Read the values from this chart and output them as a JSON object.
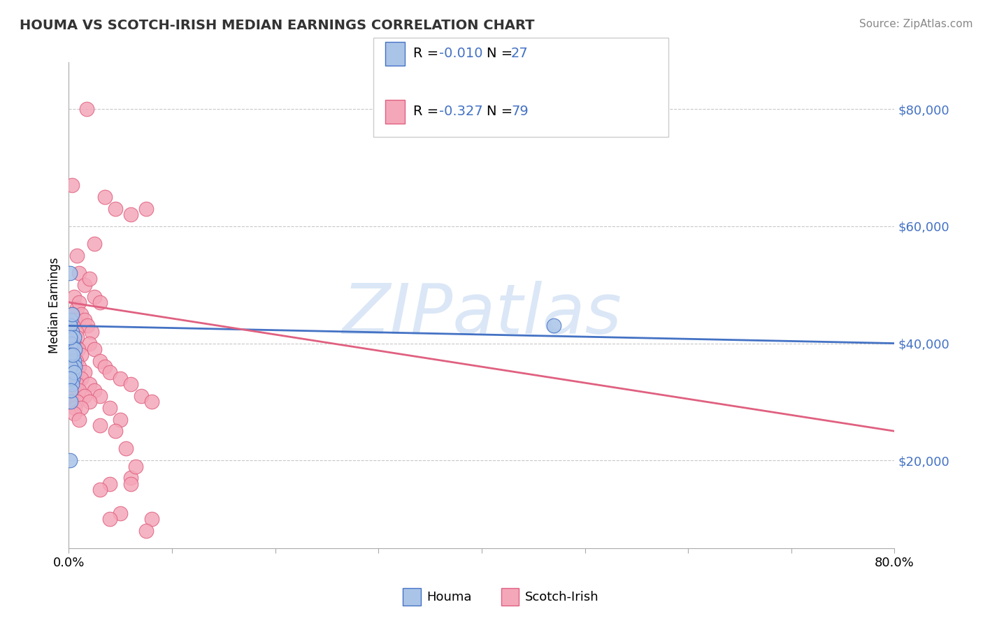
{
  "title": "HOUMA VS SCOTCH-IRISH MEDIAN EARNINGS CORRELATION CHART",
  "source": "Source: ZipAtlas.com",
  "ylabel": "Median Earnings",
  "y_ticks": [
    20000,
    40000,
    60000,
    80000
  ],
  "y_right_labels": [
    "$20,000",
    "$40,000",
    "$60,000",
    "$80,000"
  ],
  "xlim": [
    0.0,
    0.8
  ],
  "ylim": [
    5000,
    88000
  ],
  "x_tick_positions": [
    0.0,
    0.1,
    0.2,
    0.3,
    0.4,
    0.5,
    0.6,
    0.7,
    0.8
  ],
  "x_tick_labels": [
    "0.0%",
    "",
    "",
    "",
    "",
    "",
    "",
    "",
    "80.0%"
  ],
  "houma_color": "#aac4e8",
  "scotch_color": "#f4a7b9",
  "houma_line_color": "#4472c4",
  "scotch_line_color": "#e06080",
  "houma_R": -0.01,
  "houma_N": 27,
  "scotch_R": -0.327,
  "scotch_N": 79,
  "watermark": "ZIPatlas",
  "houma_points": [
    [
      0.002,
      44000
    ],
    [
      0.003,
      42000
    ],
    [
      0.004,
      40000
    ],
    [
      0.002,
      38000
    ],
    [
      0.001,
      43000
    ],
    [
      0.003,
      37000
    ],
    [
      0.005,
      41000
    ],
    [
      0.004,
      36000
    ],
    [
      0.002,
      40000
    ],
    [
      0.006,
      39000
    ],
    [
      0.003,
      35000
    ],
    [
      0.005,
      37000
    ],
    [
      0.001,
      38000
    ],
    [
      0.004,
      34000
    ],
    [
      0.006,
      36000
    ],
    [
      0.002,
      36000
    ],
    [
      0.003,
      33000
    ],
    [
      0.004,
      38000
    ],
    [
      0.005,
      35000
    ],
    [
      0.001,
      41000
    ],
    [
      0.001,
      52000
    ],
    [
      0.002,
      30000
    ],
    [
      0.001,
      20000
    ],
    [
      0.47,
      43000
    ],
    [
      0.001,
      34000
    ],
    [
      0.002,
      32000
    ],
    [
      0.003,
      45000
    ]
  ],
  "scotch_points": [
    [
      0.017,
      80000
    ],
    [
      0.003,
      67000
    ],
    [
      0.035,
      65000
    ],
    [
      0.045,
      63000
    ],
    [
      0.06,
      62000
    ],
    [
      0.075,
      63000
    ],
    [
      0.025,
      57000
    ],
    [
      0.008,
      55000
    ],
    [
      0.01,
      52000
    ],
    [
      0.015,
      50000
    ],
    [
      0.02,
      51000
    ],
    [
      0.025,
      48000
    ],
    [
      0.03,
      47000
    ],
    [
      0.005,
      48000
    ],
    [
      0.008,
      46000
    ],
    [
      0.01,
      47000
    ],
    [
      0.012,
      45000
    ],
    [
      0.003,
      45000
    ],
    [
      0.006,
      44000
    ],
    [
      0.015,
      44000
    ],
    [
      0.018,
      43000
    ],
    [
      0.004,
      43000
    ],
    [
      0.007,
      42000
    ],
    [
      0.022,
      42000
    ],
    [
      0.004,
      41000
    ],
    [
      0.008,
      41000
    ],
    [
      0.02,
      40000
    ],
    [
      0.005,
      40000
    ],
    [
      0.009,
      39000
    ],
    [
      0.025,
      39000
    ],
    [
      0.003,
      38000
    ],
    [
      0.006,
      38000
    ],
    [
      0.012,
      38000
    ],
    [
      0.03,
      37000
    ],
    [
      0.004,
      37000
    ],
    [
      0.007,
      37000
    ],
    [
      0.01,
      36000
    ],
    [
      0.035,
      36000
    ],
    [
      0.005,
      36000
    ],
    [
      0.008,
      35000
    ],
    [
      0.015,
      35000
    ],
    [
      0.04,
      35000
    ],
    [
      0.003,
      34000
    ],
    [
      0.006,
      34000
    ],
    [
      0.012,
      34000
    ],
    [
      0.05,
      34000
    ],
    [
      0.004,
      33000
    ],
    [
      0.008,
      33000
    ],
    [
      0.02,
      33000
    ],
    [
      0.06,
      33000
    ],
    [
      0.005,
      32000
    ],
    [
      0.01,
      32000
    ],
    [
      0.025,
      32000
    ],
    [
      0.07,
      31000
    ],
    [
      0.004,
      31000
    ],
    [
      0.015,
      31000
    ],
    [
      0.03,
      31000
    ],
    [
      0.003,
      30000
    ],
    [
      0.008,
      30000
    ],
    [
      0.02,
      30000
    ],
    [
      0.08,
      30000
    ],
    [
      0.006,
      29000
    ],
    [
      0.012,
      29000
    ],
    [
      0.04,
      29000
    ],
    [
      0.005,
      28000
    ],
    [
      0.01,
      27000
    ],
    [
      0.05,
      27000
    ],
    [
      0.03,
      26000
    ],
    [
      0.06,
      17000
    ],
    [
      0.04,
      16000
    ],
    [
      0.03,
      15000
    ],
    [
      0.05,
      11000
    ],
    [
      0.08,
      10000
    ],
    [
      0.04,
      10000
    ],
    [
      0.045,
      25000
    ],
    [
      0.055,
      22000
    ],
    [
      0.06,
      16000
    ],
    [
      0.075,
      8000
    ],
    [
      0.065,
      19000
    ]
  ]
}
